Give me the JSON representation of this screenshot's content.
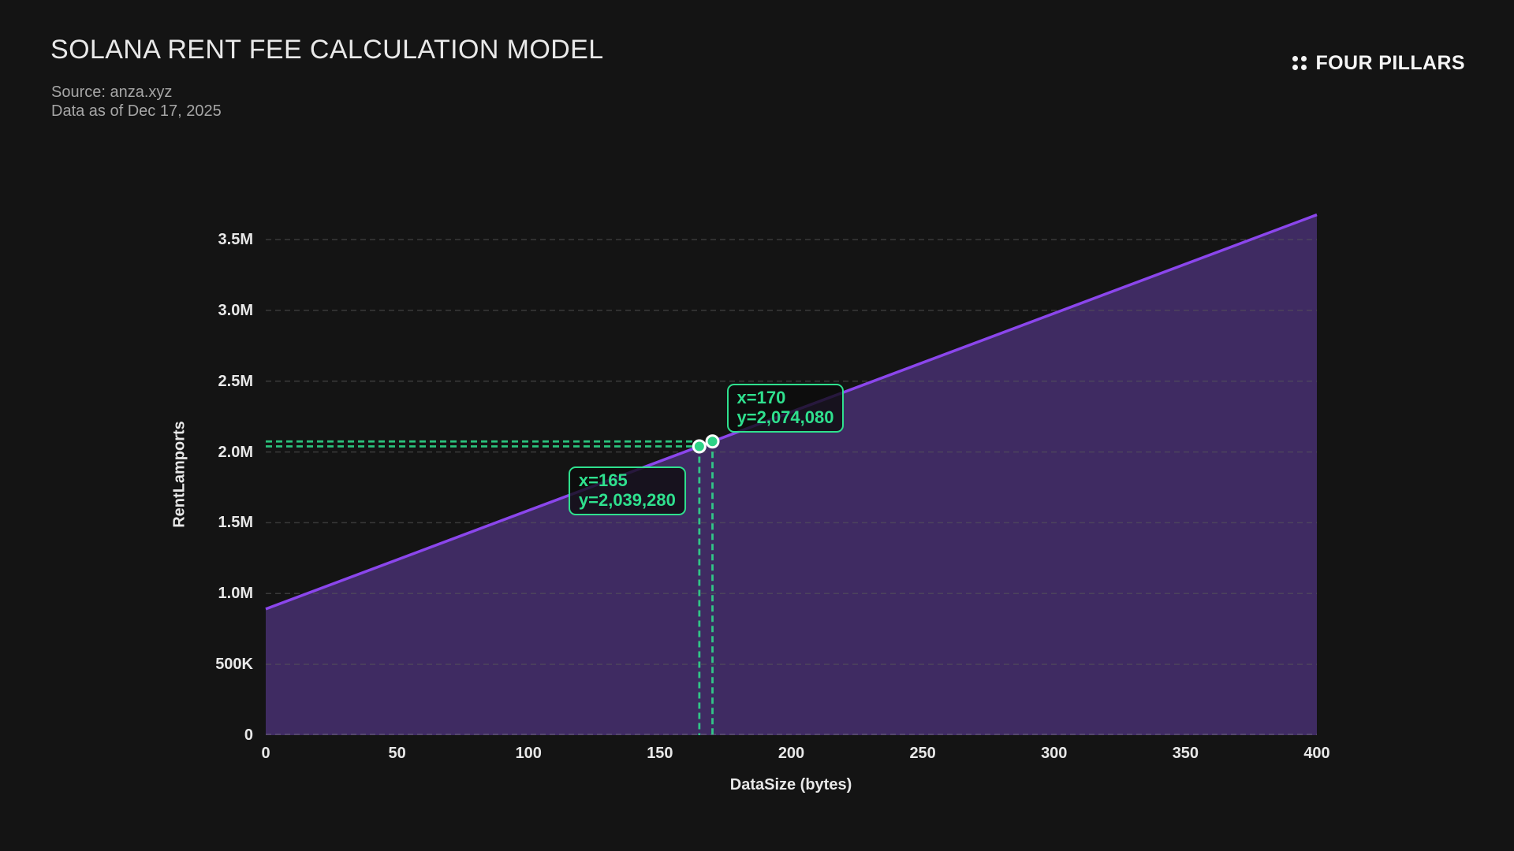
{
  "header": {
    "title": "SOLANA RENT FEE CALCULATION MODEL",
    "source": "Source: anza.xyz",
    "as_of": "Data as of Dec 17, 2025",
    "brand": "FOUR PILLARS"
  },
  "colors": {
    "bg": "#141414",
    "accent_green": "#2fe08e",
    "dot_green": "#2dd286",
    "line_purple": "#8b46ec",
    "fill_purple": "rgba(124,77,208,0.42)"
  },
  "chart_data": {
    "type": "area",
    "title": "SOLANA RENT FEE CALCULATION MODEL",
    "xlabel": "DataSize (bytes)",
    "ylabel": "RentLamports",
    "xlim": [
      0,
      400
    ],
    "ylim": [
      0,
      3678000
    ],
    "grid": "horizontal-dashed",
    "legend": "none",
    "series": [
      {
        "name": "rent_lamports_vs_datasize",
        "points": [
          [
            0,
            890880
          ],
          [
            400,
            3674880
          ]
        ]
      }
    ],
    "xticks": [
      {
        "value": 0,
        "label": "0"
      },
      {
        "value": 50,
        "label": "50"
      },
      {
        "value": 100,
        "label": "100"
      },
      {
        "value": 150,
        "label": "150"
      },
      {
        "value": 200,
        "label": "200"
      },
      {
        "value": 250,
        "label": "250"
      },
      {
        "value": 300,
        "label": "300"
      },
      {
        "value": 350,
        "label": "350"
      },
      {
        "value": 400,
        "label": "400"
      }
    ],
    "yticks": [
      {
        "value": 0,
        "label": "0"
      },
      {
        "value": 500000,
        "label": "500K"
      },
      {
        "value": 1000000,
        "label": "1.0M"
      },
      {
        "value": 1500000,
        "label": "1.5M"
      },
      {
        "value": 2000000,
        "label": "2.0M"
      },
      {
        "value": 2500000,
        "label": "2.5M"
      },
      {
        "value": 3000000,
        "label": "3.0M"
      },
      {
        "value": 3500000,
        "label": "3.5M"
      }
    ],
    "markers": [
      {
        "x": 165,
        "y": 2039280,
        "lines": [
          "x=165",
          "y=2,039,280"
        ],
        "anchor": "below-left"
      },
      {
        "x": 170,
        "y": 2074080,
        "lines": [
          "x=170",
          "y=2,074,080"
        ],
        "anchor": "above-right"
      }
    ]
  }
}
